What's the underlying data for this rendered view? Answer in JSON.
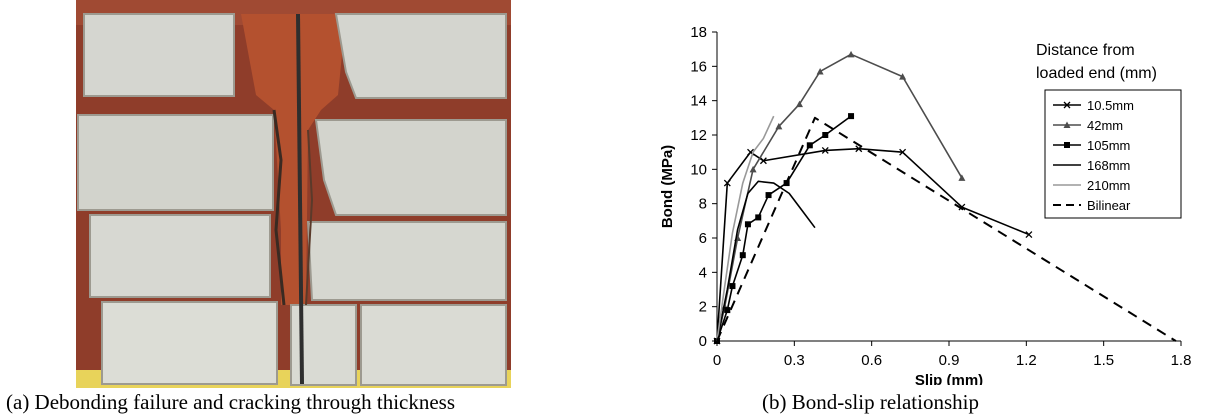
{
  "photo": {
    "caption": "(a) Debonding failure and cracking through thickness",
    "colors": {
      "block": "#d5d6d0",
      "mortar": "#b9b7ae",
      "brick_red": "#b4512f",
      "background": "#8f3d2a",
      "floor": "#e8d35a",
      "bar": "#2e2e2e"
    }
  },
  "chart": {
    "caption": "(b) Bond-slip relationship"
  },
  "chart_data": {
    "type": "line",
    "xlabel": "Slip (mm)",
    "ylabel": "Bond (MPa)",
    "xlim": [
      0,
      1.8
    ],
    "ylim": [
      0,
      18
    ],
    "x_ticks": [
      0,
      0.3,
      0.6,
      0.9,
      1.2,
      1.5,
      1.8
    ],
    "x_tick_labels": [
      "0",
      "0.3",
      "0.6",
      "0.9",
      "1.2",
      "1.5",
      "1.8"
    ],
    "y_ticks": [
      0,
      2,
      4,
      6,
      8,
      10,
      12,
      14,
      16,
      18
    ],
    "y_tick_labels": [
      "0",
      "2",
      "4",
      "6",
      "8",
      "10",
      "12",
      "14",
      "16",
      "18"
    ],
    "grid": false,
    "legend_title": [
      "Distance from",
      "loaded end (mm)"
    ],
    "legend_position": "top-right",
    "series": [
      {
        "name": "10.5mm",
        "color": "#000000",
        "marker": "x",
        "dash": false,
        "x": [
          0,
          0.04,
          0.13,
          0.18,
          0.42,
          0.55,
          0.72,
          0.95,
          1.21
        ],
        "y": [
          0,
          9.2,
          11.0,
          10.5,
          11.1,
          11.2,
          11.0,
          7.8,
          6.2
        ]
      },
      {
        "name": "42mm",
        "color": "#4d4d4d",
        "marker": "triangle",
        "dash": false,
        "x": [
          0,
          0.03,
          0.08,
          0.14,
          0.24,
          0.32,
          0.4,
          0.52,
          0.72,
          0.95
        ],
        "y": [
          0,
          2.0,
          6.0,
          10.0,
          12.5,
          13.8,
          15.7,
          16.7,
          15.4,
          9.5
        ]
      },
      {
        "name": "105mm",
        "color": "#000000",
        "marker": "square",
        "dash": false,
        "x": [
          0,
          0.04,
          0.06,
          0.1,
          0.12,
          0.16,
          0.2,
          0.27,
          0.36,
          0.42,
          0.52
        ],
        "y": [
          0,
          1.8,
          3.2,
          5.0,
          6.8,
          7.2,
          8.5,
          9.2,
          11.4,
          12.0,
          13.1
        ]
      },
      {
        "name": "168mm",
        "color": "#000000",
        "marker": "none",
        "dash": false,
        "x": [
          0,
          0.04,
          0.08,
          0.12,
          0.16,
          0.22,
          0.28,
          0.33,
          0.38
        ],
        "y": [
          0,
          3.0,
          6.5,
          8.6,
          9.3,
          9.2,
          8.6,
          7.6,
          6.6
        ]
      },
      {
        "name": "210mm",
        "color": "#999999",
        "marker": "none",
        "dash": false,
        "x": [
          0,
          0.03,
          0.06,
          0.1,
          0.14,
          0.18,
          0.22
        ],
        "y": [
          0,
          3.2,
          6.3,
          9.2,
          11.0,
          11.8,
          13.1
        ]
      },
      {
        "name": "Bilinear",
        "color": "#000000",
        "marker": "none",
        "dash": true,
        "x": [
          0,
          0.38,
          1.78
        ],
        "y": [
          0,
          13.0,
          0
        ]
      }
    ]
  }
}
